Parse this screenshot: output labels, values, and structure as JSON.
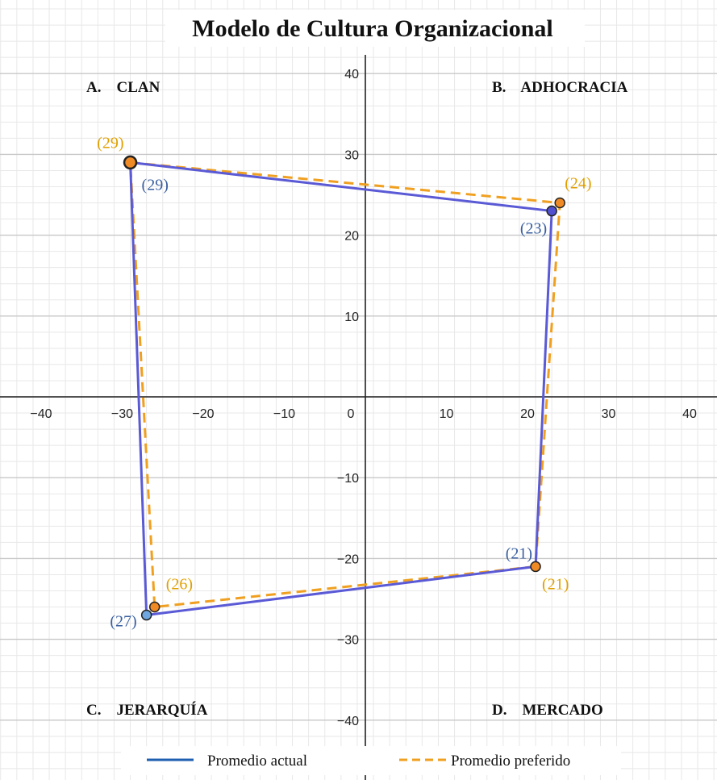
{
  "colors": {
    "actual": "#5a5ad6",
    "preferred": "#f0a020",
    "actual_label": "#3a5fa0",
    "preferred_label": "#e0a000",
    "legend_actual": "#1f5fb0",
    "point_orange": "#f08a24",
    "point_blue_light": "#6fa8e0",
    "point_blue_dark": "#5050d0",
    "grid_major": "#c8c8c8",
    "grid_minor": "#e8e8e8",
    "axis": "#222222"
  },
  "chart_data": {
    "type": "line",
    "title": "Modelo de Cultura Organizacional",
    "xlim": [
      -45,
      45
    ],
    "ylim": [
      -47,
      42
    ],
    "x_ticks": [
      -40,
      -30,
      -20,
      -10,
      0,
      10,
      20,
      30,
      40
    ],
    "x_tick_labels": [
      "−40",
      "−30",
      "−20",
      "−10",
      "0",
      "10",
      "20",
      "30",
      "40"
    ],
    "y_ticks": [
      40,
      30,
      20,
      10,
      -10,
      -20,
      -30,
      -40
    ],
    "y_tick_labels": [
      "40",
      "30",
      "20",
      "10",
      "−10",
      "−20",
      "−30",
      "−40"
    ],
    "grid": true,
    "quadrants": [
      "A.    CLAN",
      "B.    ADHOCRACIA",
      "C.    JERARQUÍA",
      "D.    MERCADO"
    ],
    "series": [
      {
        "name": "Promedio actual",
        "style": "solid",
        "points": [
          {
            "x": -29,
            "y": 29,
            "label": "(29)"
          },
          {
            "x": 23,
            "y": 23,
            "label": "(23)"
          },
          {
            "x": 21,
            "y": -21,
            "label": "(21)"
          },
          {
            "x": -27,
            "y": -27,
            "label": "(27)"
          }
        ]
      },
      {
        "name": "Promedio preferido",
        "style": "dashed",
        "points": [
          {
            "x": -29,
            "y": 29,
            "label": "(29)"
          },
          {
            "x": 24,
            "y": 24,
            "label": "(24)"
          },
          {
            "x": 21,
            "y": -21,
            "label": "(21)"
          },
          {
            "x": -26,
            "y": -26,
            "label": "(26)"
          }
        ]
      }
    ],
    "legend": {
      "placement": "bottom",
      "items": [
        "Promedio actual",
        "Promedio preferido"
      ]
    }
  }
}
